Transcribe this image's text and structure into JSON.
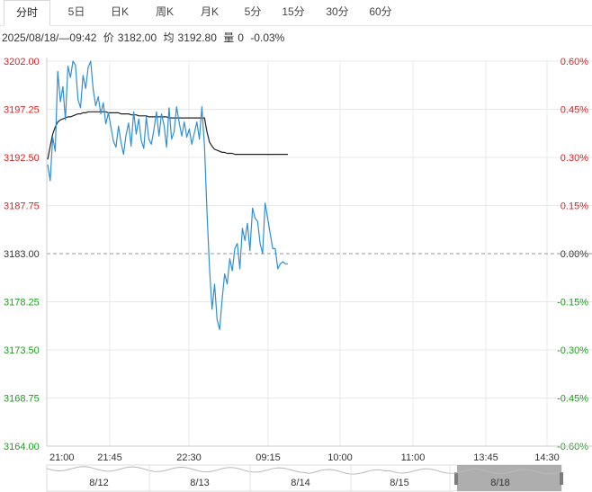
{
  "tabs": [
    {
      "label": "分时",
      "active": true
    },
    {
      "label": "5日",
      "active": false
    },
    {
      "label": "日K",
      "active": false
    },
    {
      "label": "周K",
      "active": false
    },
    {
      "label": "月K",
      "active": false
    },
    {
      "label": "5分",
      "active": false
    },
    {
      "label": "15分",
      "active": false
    },
    {
      "label": "30分",
      "active": false
    },
    {
      "label": "60分",
      "active": false
    }
  ],
  "info": {
    "datetime": "2025/08/18/—09:42",
    "price_label": "价",
    "price": "3182.00",
    "avg_label": "均",
    "avg": "3192.80",
    "volume_label": "量",
    "volume": "0",
    "change": "-0.03%"
  },
  "colors": {
    "price_line": "#2f8fd8",
    "avg_line": "#222222",
    "up": "#e02020",
    "down": "#1aa21a",
    "grid": "#e8e8e8",
    "baseline": "#999999"
  },
  "navigator": {
    "labels": [
      "8/12",
      "8/13",
      "8/14",
      "8/15",
      "8/18"
    ]
  },
  "chart_data": {
    "type": "line",
    "title": "",
    "xlabel": "",
    "ylabel": "",
    "ylim": [
      3164.0,
      3202.0
    ],
    "pct_lim": [
      -0.6,
      0.6
    ],
    "prev_close": 3183.0,
    "y_ticks": [
      "3202.00",
      "3197.25",
      "3192.50",
      "3187.75",
      "3183.00",
      "3178.25",
      "3173.50",
      "3168.75",
      "3164.00"
    ],
    "pct_ticks": [
      "0.60%",
      "0.45%",
      "0.30%",
      "0.15%",
      "0.00%",
      "-0.15%",
      "-0.30%",
      "-0.45%",
      "-0.60%"
    ],
    "x_ticks": [
      "21:00",
      "21:45",
      "22:30",
      "09:15",
      "10:00",
      "11:00",
      "13:45",
      "14:30"
    ],
    "grid": true,
    "series": [
      {
        "values": [
          3191.8,
          3190.2,
          3194.5,
          3193.1,
          3201.0,
          3198.0,
          3199.5,
          3196.2,
          3201.5,
          3200.4,
          3202.0,
          3201.6,
          3198.2,
          3197.4,
          3200.6,
          3199.3,
          3201.4,
          3202.0,
          3199.2,
          3197.6,
          3198.5,
          3196.8,
          3197.9,
          3195.8,
          3196.9,
          3195.5,
          3194.1,
          3193.5,
          3195.6,
          3194.0,
          3192.8,
          3194.7,
          3195.9,
          3193.6,
          3197.0,
          3194.8,
          3196.3,
          3194.2,
          3193.4,
          3196.5,
          3194.3,
          3193.8,
          3195.2,
          3197.0,
          3194.6,
          3196.8,
          3195.7,
          3193.5,
          3197.4,
          3194.3,
          3195.0,
          3197.5,
          3196.0,
          3194.6,
          3196.0,
          3194.5,
          3195.3,
          3193.8,
          3194.9,
          3196.0,
          3194.3,
          3197.5,
          3193.6,
          3187.0,
          3181.5,
          3177.5,
          3180.0,
          3176.5,
          3175.5,
          3178.5,
          3181.0,
          3180.0,
          3182.5,
          3181.3,
          3183.5,
          3184.0,
          3181.5,
          3185.5,
          3184.3,
          3186.0,
          3183.3,
          3187.5,
          3186.5,
          3186.2,
          3184.0,
          3183.0,
          3188.0,
          3186.5,
          3185.0,
          3183.5,
          3183.5,
          3181.5,
          3182.0,
          3182.2,
          3182.0,
          3182.0
        ]
      },
      {
        "values": [
          3192.3,
          3193.6,
          3194.8,
          3195.5,
          3196.0,
          3196.2,
          3196.3,
          3196.4,
          3196.5,
          3196.5,
          3196.6,
          3196.7,
          3196.8,
          3196.8,
          3196.9,
          3196.9,
          3197.0,
          3197.0,
          3197.0,
          3197.0,
          3197.0,
          3197.0,
          3197.0,
          3197.0,
          3196.9,
          3196.9,
          3196.9,
          3196.9,
          3196.9,
          3196.8,
          3196.8,
          3196.8,
          3196.8,
          3196.7,
          3196.7,
          3196.7,
          3196.6,
          3196.6,
          3196.6,
          3196.6,
          3196.5,
          3196.5,
          3196.5,
          3196.5,
          3196.5,
          3196.5,
          3196.5,
          3196.5,
          3196.4,
          3196.4,
          3196.4,
          3196.4,
          3196.4,
          3196.4,
          3196.4,
          3196.4,
          3196.4,
          3196.4,
          3196.4,
          3196.4,
          3196.4,
          3196.4,
          3196.4,
          3195.0,
          3194.0,
          3193.6,
          3193.3,
          3193.2,
          3193.1,
          3193.0,
          3193.0,
          3192.9,
          3192.9,
          3192.9,
          3192.8,
          3192.8,
          3192.8,
          3192.8,
          3192.8,
          3192.8,
          3192.8,
          3192.8,
          3192.8,
          3192.8,
          3192.8,
          3192.8,
          3192.8,
          3192.8,
          3192.8,
          3192.8,
          3192.8,
          3192.8,
          3192.8,
          3192.8,
          3192.8,
          3192.8
        ]
      }
    ]
  }
}
